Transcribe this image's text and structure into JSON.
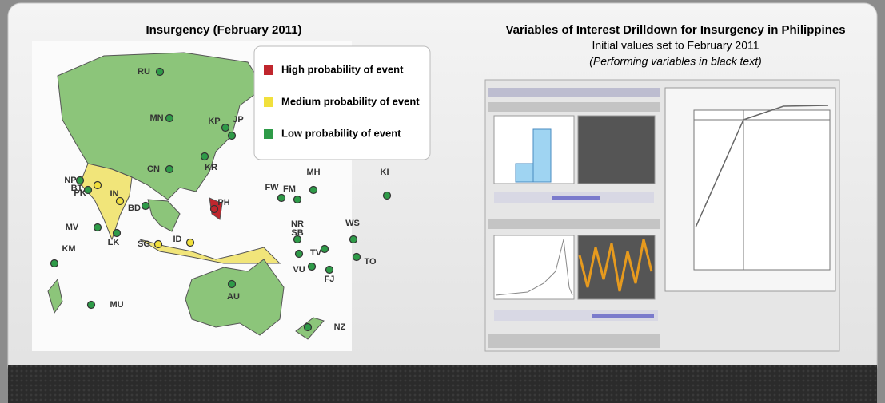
{
  "left_panel": {
    "title": "Insurgency (February 2011)",
    "legend": [
      {
        "label": "High probability of event",
        "color": "#c0262d"
      },
      {
        "label": "Medium probability of event",
        "color": "#f1e03c"
      },
      {
        "label": "Low probability of event",
        "color": "#2e9b48"
      }
    ],
    "map_labels": [
      "RU",
      "MN",
      "KP",
      "JP",
      "KR",
      "CN",
      "PK",
      "NP",
      "BT",
      "IN",
      "BD",
      "MV",
      "LK",
      "SG",
      "ID",
      "PH",
      "FW",
      "FM",
      "MH",
      "KI",
      "NR",
      "SB",
      "WS",
      "TV",
      "TO",
      "VU",
      "FJ",
      "AU",
      "NZ",
      "KM",
      "MU"
    ]
  },
  "right_panel": {
    "title": "Variables of Interest Drilldown for Insurgency in Philippines",
    "subtitle": "Initial values set to February 2011",
    "note": "(Performing variables in black text)"
  }
}
